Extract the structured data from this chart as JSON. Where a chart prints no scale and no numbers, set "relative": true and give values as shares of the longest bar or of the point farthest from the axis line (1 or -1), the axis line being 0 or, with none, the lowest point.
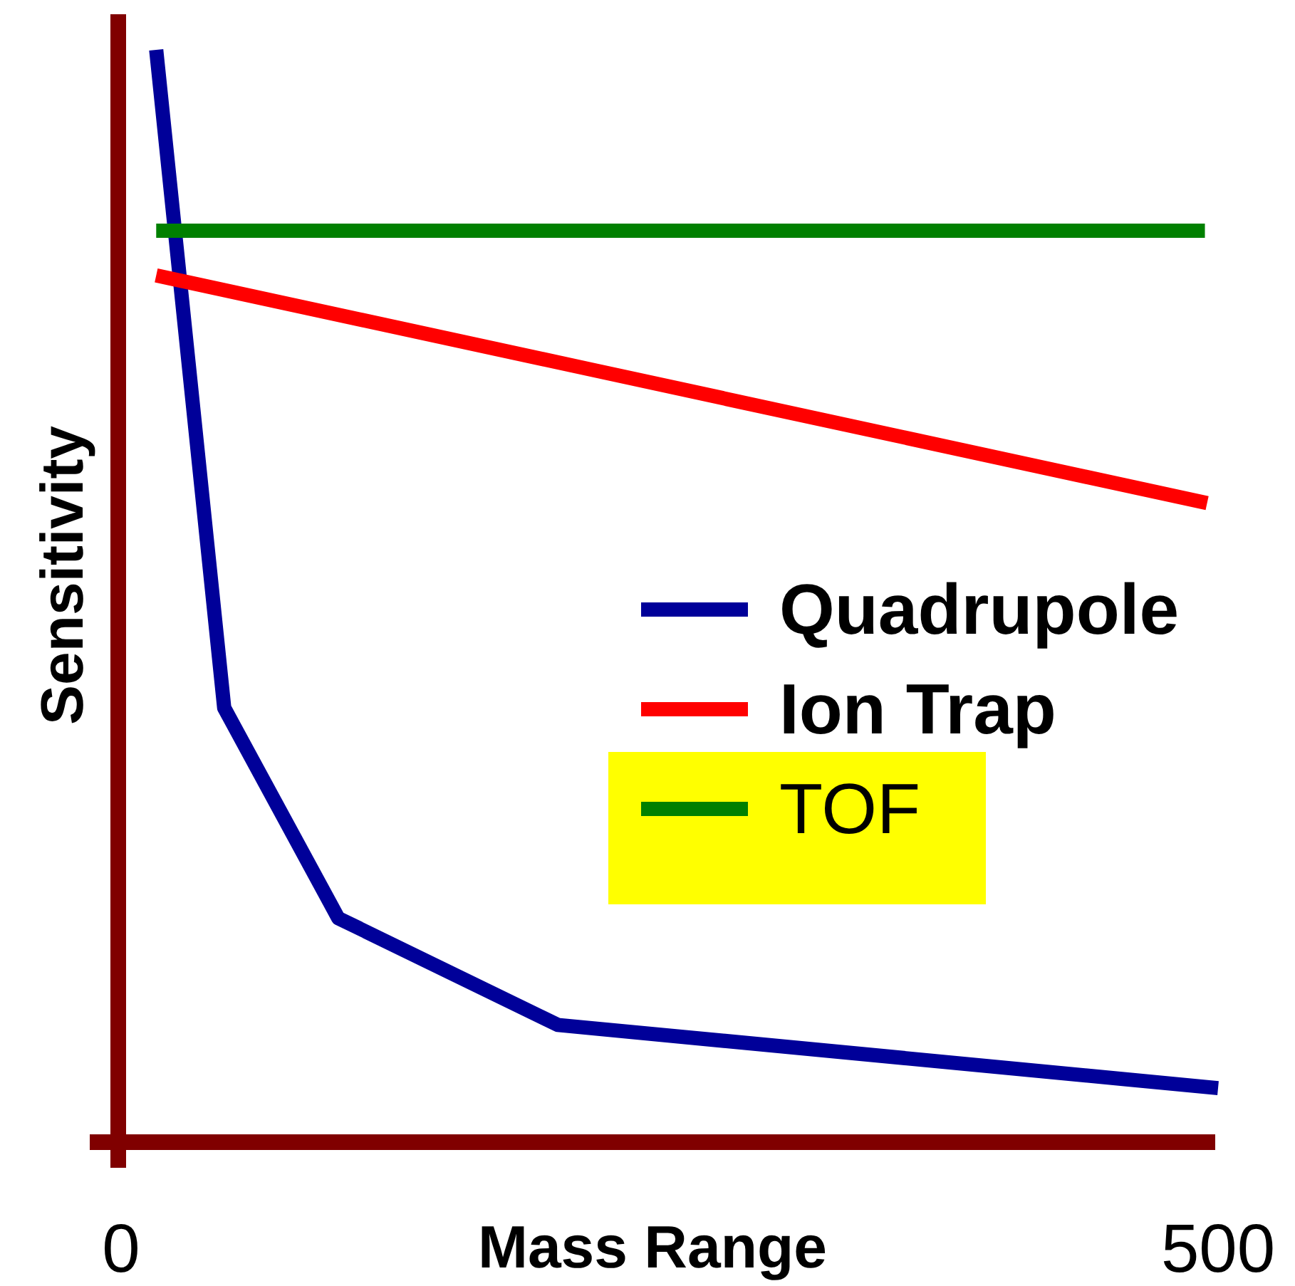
{
  "chart_data": {
    "type": "line",
    "xlabel": "Mass Range",
    "ylabel": "Sensitivity",
    "relative": true,
    "xlim": [
      0,
      500
    ],
    "xticks": [
      0,
      500
    ],
    "grid": false,
    "legend": "right",
    "series": [
      {
        "name": "Quadrupole",
        "color": "#000099",
        "x": [
          16,
          47,
          99,
          199,
          500
        ],
        "values": [
          1,
          0.396,
          0.203,
          0.105,
          0.047
        ]
      },
      {
        "name": "Ion Trap",
        "color": "#ff0000",
        "x": [
          16,
          495
        ],
        "values": [
          0.793,
          0.584
        ]
      },
      {
        "name": "TOF",
        "color": "#008000",
        "x": [
          16,
          494
        ],
        "values": [
          0.834,
          0.834
        ]
      }
    ]
  }
}
